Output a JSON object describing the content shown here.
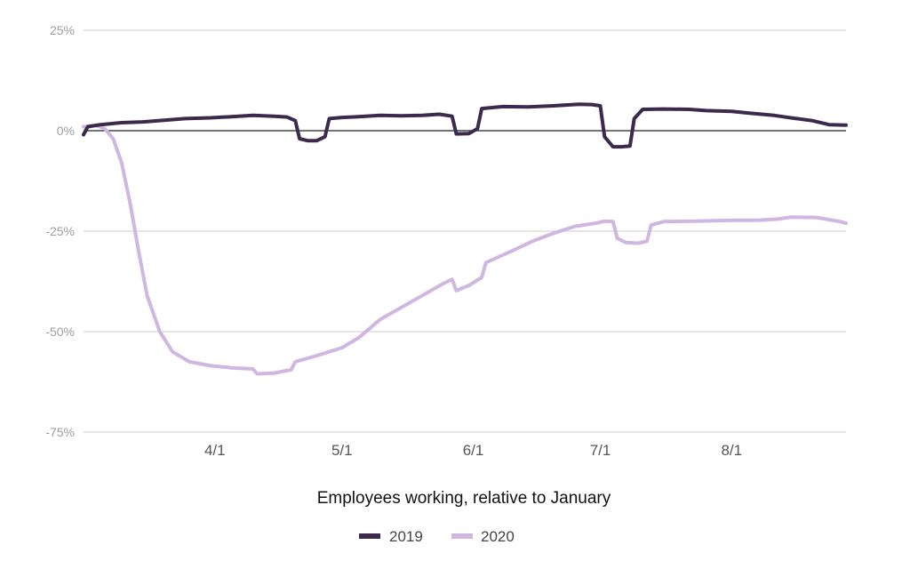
{
  "chart_data": {
    "type": "line",
    "title": "",
    "xlabel": "Employees working, relative to January",
    "ylabel": "",
    "ylim": [
      -75,
      25
    ],
    "yticks": [
      {
        "value": 25,
        "label": "25%"
      },
      {
        "value": 0,
        "label": "0%"
      },
      {
        "value": -25,
        "label": "-25%"
      },
      {
        "value": -50,
        "label": "-50%"
      },
      {
        "value": -75,
        "label": "-75%"
      }
    ],
    "xlim": [
      "2020-03-01",
      "2020-08-28"
    ],
    "xticks": [
      {
        "value": "2020-04-01",
        "label": "4/1"
      },
      {
        "value": "2020-05-01",
        "label": "5/1"
      },
      {
        "value": "2020-06-01",
        "label": "6/1"
      },
      {
        "value": "2020-07-01",
        "label": "7/1"
      },
      {
        "value": "2020-08-01",
        "label": "8/1"
      }
    ],
    "grid": true,
    "legend_position": "bottom-center",
    "series": [
      {
        "name": "2019",
        "color": "#3b2a4d",
        "points": [
          [
            "2020-03-01",
            -1
          ],
          [
            "2020-03-02",
            1
          ],
          [
            "2020-03-05",
            1.5
          ],
          [
            "2020-03-10",
            2
          ],
          [
            "2020-03-15",
            2.2
          ],
          [
            "2020-03-20",
            2.6
          ],
          [
            "2020-03-25",
            3
          ],
          [
            "2020-03-31",
            3.2
          ],
          [
            "2020-04-05",
            3.5
          ],
          [
            "2020-04-10",
            3.8
          ],
          [
            "2020-04-15",
            3.6
          ],
          [
            "2020-04-18",
            3.4
          ],
          [
            "2020-04-20",
            2.5
          ],
          [
            "2020-04-21",
            -2
          ],
          [
            "2020-04-23",
            -2.5
          ],
          [
            "2020-04-25",
            -2.5
          ],
          [
            "2020-04-27",
            -1.5
          ],
          [
            "2020-04-28",
            3
          ],
          [
            "2020-05-01",
            3.3
          ],
          [
            "2020-05-05",
            3.5
          ],
          [
            "2020-05-10",
            3.8
          ],
          [
            "2020-05-15",
            3.7
          ],
          [
            "2020-05-20",
            3.8
          ],
          [
            "2020-05-24",
            4.1
          ],
          [
            "2020-05-27",
            3.6
          ],
          [
            "2020-05-28",
            -0.8
          ],
          [
            "2020-05-31",
            -0.7
          ],
          [
            "2020-06-02",
            0.5
          ],
          [
            "2020-06-03",
            5.5
          ],
          [
            "2020-06-08",
            6
          ],
          [
            "2020-06-14",
            5.9
          ],
          [
            "2020-06-20",
            6.2
          ],
          [
            "2020-06-26",
            6.6
          ],
          [
            "2020-06-29",
            6.5
          ],
          [
            "2020-07-01",
            6.2
          ],
          [
            "2020-07-02",
            -1.5
          ],
          [
            "2020-07-04",
            -4
          ],
          [
            "2020-07-06",
            -4
          ],
          [
            "2020-07-08",
            -3.8
          ],
          [
            "2020-07-09",
            3
          ],
          [
            "2020-07-11",
            5.3
          ],
          [
            "2020-07-16",
            5.4
          ],
          [
            "2020-07-22",
            5.3
          ],
          [
            "2020-07-26",
            5
          ],
          [
            "2020-08-01",
            4.8
          ],
          [
            "2020-08-06",
            4.3
          ],
          [
            "2020-08-11",
            3.8
          ],
          [
            "2020-08-15",
            3.2
          ],
          [
            "2020-08-20",
            2.5
          ],
          [
            "2020-08-24",
            1.5
          ],
          [
            "2020-08-28",
            1.4
          ]
        ]
      },
      {
        "name": "2020",
        "color": "#cfb7e1",
        "points": [
          [
            "2020-03-01",
            1
          ],
          [
            "2020-03-04",
            1.3
          ],
          [
            "2020-03-06",
            0.5
          ],
          [
            "2020-03-08",
            -2
          ],
          [
            "2020-03-10",
            -8
          ],
          [
            "2020-03-12",
            -18
          ],
          [
            "2020-03-14",
            -30
          ],
          [
            "2020-03-16",
            -41
          ],
          [
            "2020-03-19",
            -50
          ],
          [
            "2020-03-22",
            -55
          ],
          [
            "2020-03-26",
            -57.5
          ],
          [
            "2020-03-31",
            -58.5
          ],
          [
            "2020-04-05",
            -59
          ],
          [
            "2020-04-10",
            -59.3
          ],
          [
            "2020-04-11",
            -60.5
          ],
          [
            "2020-04-15",
            -60.3
          ],
          [
            "2020-04-19",
            -59.5
          ],
          [
            "2020-04-20",
            -57.5
          ],
          [
            "2020-04-25",
            -56
          ],
          [
            "2020-05-01",
            -54
          ],
          [
            "2020-05-05",
            -51.5
          ],
          [
            "2020-05-10",
            -47
          ],
          [
            "2020-05-15",
            -44
          ],
          [
            "2020-05-20",
            -41
          ],
          [
            "2020-05-25",
            -38
          ],
          [
            "2020-05-27",
            -37
          ],
          [
            "2020-05-28",
            -39.8
          ],
          [
            "2020-05-31",
            -38.5
          ],
          [
            "2020-06-03",
            -36.5
          ],
          [
            "2020-06-04",
            -32.8
          ],
          [
            "2020-06-10",
            -30
          ],
          [
            "2020-06-15",
            -27.5
          ],
          [
            "2020-06-20",
            -25.5
          ],
          [
            "2020-06-25",
            -23.8
          ],
          [
            "2020-06-30",
            -23
          ],
          [
            "2020-07-02",
            -22.5
          ],
          [
            "2020-07-04",
            -22.6
          ],
          [
            "2020-07-05",
            -26.8
          ],
          [
            "2020-07-07",
            -27.8
          ],
          [
            "2020-07-10",
            -28
          ],
          [
            "2020-07-12",
            -27.5
          ],
          [
            "2020-07-13",
            -23.5
          ],
          [
            "2020-07-16",
            -22.6
          ],
          [
            "2020-07-24",
            -22.5
          ],
          [
            "2020-08-01",
            -22.3
          ],
          [
            "2020-08-07",
            -22.3
          ],
          [
            "2020-08-12",
            -22
          ],
          [
            "2020-08-15",
            -21.5
          ],
          [
            "2020-08-21",
            -21.6
          ],
          [
            "2020-08-26",
            -22.5
          ],
          [
            "2020-08-28",
            -23
          ]
        ]
      }
    ]
  }
}
